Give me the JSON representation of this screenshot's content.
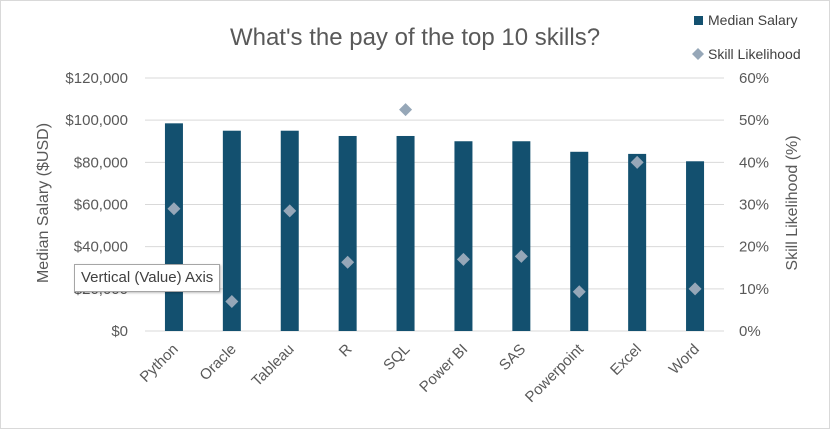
{
  "chart_data": {
    "type": "bar",
    "title": "What's the pay of the top 10 skills?",
    "categories": [
      "Python",
      "Oracle",
      "Tableau",
      "R",
      "SQL",
      "Power BI",
      "SAS",
      "Powerpoint",
      "Excel",
      "Word"
    ],
    "series": [
      {
        "name": "Median Salary",
        "type": "bar",
        "axis": "left",
        "values": [
          98500,
          95000,
          95000,
          92500,
          92500,
          90000,
          90000,
          85000,
          84000,
          80500
        ],
        "color": "#13506f"
      },
      {
        "name": "Skill Likelihood",
        "type": "scatter",
        "axis": "right",
        "marker": "diamond",
        "values": [
          29,
          7,
          28.5,
          16.3,
          52.5,
          17,
          17.7,
          9.3,
          40,
          10
        ],
        "color": "#96a7b8"
      }
    ],
    "ylabel": "Median Salary ($USD)",
    "y2label": "Skill Likelihood (%)",
    "ylim": [
      0,
      120000
    ],
    "y2lim": [
      0,
      60
    ],
    "yticks": [
      "$0",
      "$20,000",
      "$40,000",
      "$60,000",
      "$80,000",
      "$100,000",
      "$120,000"
    ],
    "y2ticks": [
      "0%",
      "10%",
      "20%",
      "30%",
      "40%",
      "50%",
      "60%"
    ],
    "grid": true,
    "legend": "top-right"
  },
  "tooltip": "Vertical (Value) Axis"
}
